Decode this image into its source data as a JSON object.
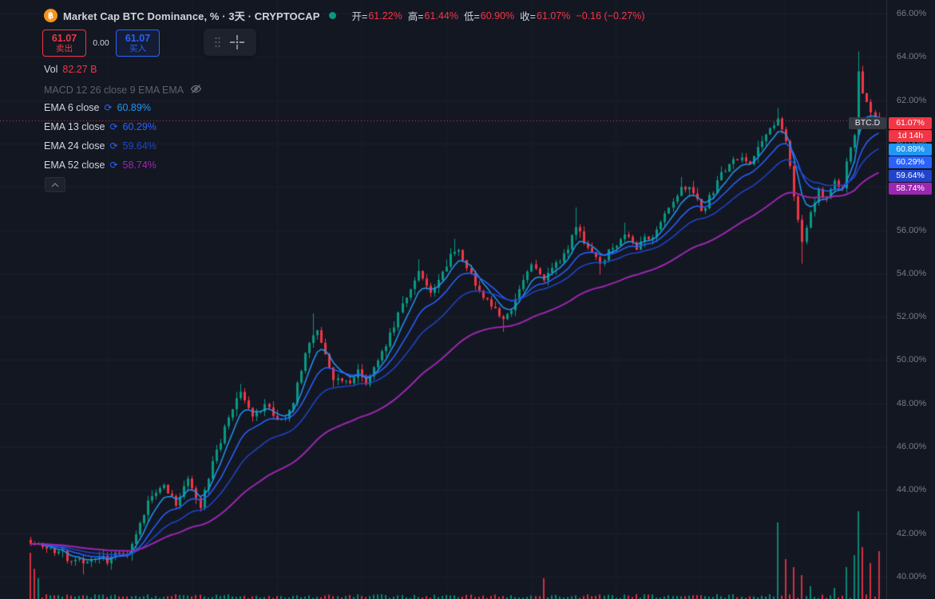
{
  "icons": {
    "bitcoin": "฿",
    "ema_source": "⟳"
  },
  "header": {
    "title": "Market Cap BTC Dominance, % · 3天 · CRYPTOCAP",
    "ohlc": {
      "open_label": "开=",
      "open": "61.22%",
      "high_label": "高=",
      "high": "61.44%",
      "low_label": "低=",
      "low": "60.90%",
      "close_label": "收=",
      "close": "61.07%",
      "change": "−0.16 (−0.27%)"
    }
  },
  "trade": {
    "sell_price": "61.07",
    "sell_label": "卖出",
    "spread": "0.00",
    "buy_price": "61.07",
    "buy_label": "买入"
  },
  "price_axis": {
    "symbol_tag": "BTC.D",
    "symbol_tag_bg": "#363a45",
    "ticks": [
      {
        "value": 66,
        "label": "66.00%"
      },
      {
        "value": 64,
        "label": "64.00%"
      },
      {
        "value": 62,
        "label": "62.00%"
      },
      {
        "value": 60,
        "label": "60.00%"
      },
      {
        "value": 58,
        "label": "58.00%"
      },
      {
        "value": 56,
        "label": "56.00%"
      },
      {
        "value": 54,
        "label": "54.00%"
      },
      {
        "value": 52,
        "label": "52.00%"
      },
      {
        "value": 50,
        "label": "50.00%"
      },
      {
        "value": 48,
        "label": "48.00%"
      },
      {
        "value": 46,
        "label": "46.00%"
      },
      {
        "value": 44,
        "label": "44.00%"
      },
      {
        "value": 42,
        "label": "42.00%"
      },
      {
        "value": 40,
        "label": "40.00%"
      }
    ]
  },
  "chart_data": {
    "type": "candlestick",
    "title": "Market Cap BTC Dominance, % · 3天 · CRYPTOCAP",
    "symbol": "CRYPTOCAP:BTC.D",
    "timeframe": "3天",
    "ylabel": "BTC Dominance %",
    "ylim": [
      38.9,
      66.6
    ],
    "grid": true,
    "current_price": 61.07,
    "bar_countdown": "1d 14h",
    "last_bar": {
      "open": 61.22,
      "high": 61.44,
      "low": 60.9,
      "close": 61.07,
      "change": -0.16,
      "change_pct": -0.27
    },
    "volume": {
      "label": "Vol",
      "value": "82.27 B"
    },
    "macd": {
      "label": "MACD 12 26 close 9 EMA EMA",
      "hidden": true
    },
    "emas": [
      {
        "period": 6,
        "label": "EMA 6 close",
        "value_label": "60.89%",
        "last": 60.89,
        "color": "#2196f3"
      },
      {
        "period": 13,
        "label": "EMA 13 close",
        "value_label": "60.29%",
        "last": 60.29,
        "color": "#2962ff"
      },
      {
        "period": 24,
        "label": "EMA 24 close",
        "value_label": "59.64%",
        "last": 59.64,
        "color": "#2045cc"
      },
      {
        "period": 52,
        "label": "EMA 52 close",
        "value_label": "58.74%",
        "last": 58.74,
        "color": "#9c27b0"
      }
    ],
    "n_bars": 211,
    "trend_anchors": [
      [
        0,
        41.6
      ],
      [
        5,
        41.2
      ],
      [
        11,
        40.8
      ],
      [
        15,
        40.6
      ],
      [
        20,
        40.9
      ],
      [
        25,
        41.3
      ],
      [
        29,
        43.4
      ],
      [
        33,
        44.3
      ],
      [
        36,
        43.3
      ],
      [
        39,
        44.6
      ],
      [
        42,
        43.2
      ],
      [
        46,
        45.8
      ],
      [
        50,
        47.8
      ],
      [
        52,
        48.4
      ],
      [
        55,
        47.4
      ],
      [
        58,
        48.0
      ],
      [
        61,
        47.0
      ],
      [
        64,
        47.6
      ],
      [
        67,
        49.5
      ],
      [
        69,
        51.0
      ],
      [
        71,
        51.5
      ],
      [
        73,
        50.3
      ],
      [
        75,
        49.3
      ],
      [
        78,
        48.9
      ],
      [
        81,
        49.4
      ],
      [
        83,
        48.9
      ],
      [
        85,
        49.6
      ],
      [
        88,
        50.8
      ],
      [
        91,
        52.2
      ],
      [
        94,
        53.4
      ],
      [
        96,
        54.1
      ],
      [
        99,
        53.0
      ],
      [
        101,
        53.6
      ],
      [
        104,
        54.9
      ],
      [
        106,
        55.2
      ],
      [
        108,
        54.2
      ],
      [
        111,
        53.2
      ],
      [
        114,
        52.5
      ],
      [
        117,
        51.9
      ],
      [
        119,
        52.3
      ],
      [
        122,
        53.6
      ],
      [
        124,
        54.4
      ],
      [
        127,
        53.7
      ],
      [
        130,
        54.3
      ],
      [
        133,
        55.0
      ],
      [
        135,
        56.3
      ],
      [
        138,
        55.2
      ],
      [
        141,
        54.4
      ],
      [
        144,
        55.3
      ],
      [
        147,
        55.8
      ],
      [
        150,
        55.3
      ],
      [
        153,
        55.6
      ],
      [
        156,
        56.3
      ],
      [
        159,
        57.2
      ],
      [
        161,
        58.0
      ],
      [
        164,
        57.6
      ],
      [
        166,
        56.9
      ],
      [
        169,
        57.8
      ],
      [
        172,
        58.8
      ],
      [
        175,
        59.3
      ],
      [
        178,
        59.0
      ],
      [
        180,
        59.8
      ],
      [
        183,
        60.8
      ],
      [
        185,
        61.3
      ],
      [
        187,
        60.2
      ],
      [
        189,
        57.5
      ],
      [
        191,
        55.3
      ],
      [
        193,
        56.8
      ],
      [
        195,
        57.8
      ],
      [
        197,
        57.4
      ],
      [
        199,
        58.2
      ],
      [
        201,
        58.0
      ],
      [
        202,
        59.3
      ],
      [
        204,
        60.3
      ],
      [
        205,
        63.3
      ],
      [
        206,
        62.3
      ],
      [
        208,
        61.6
      ],
      [
        210,
        61.07
      ]
    ],
    "wick_spikes": [
      {
        "i": 13,
        "low": 40.1
      },
      {
        "i": 52,
        "high": 48.9
      },
      {
        "i": 70,
        "high": 52.15
      },
      {
        "i": 96,
        "high": 54.65
      },
      {
        "i": 105,
        "high": 55.6
      },
      {
        "i": 117,
        "low": 51.3
      },
      {
        "i": 135,
        "high": 57.05
      },
      {
        "i": 141,
        "low": 53.95
      },
      {
        "i": 147,
        "high": 56.35
      },
      {
        "i": 161,
        "high": 58.45
      },
      {
        "i": 185,
        "high": 61.65
      },
      {
        "i": 191,
        "low": 54.45
      },
      {
        "i": 205,
        "high": 64.25
      }
    ],
    "volume_spikes": [
      {
        "i": 0,
        "h": 58
      },
      {
        "i": 1,
        "h": 38
      },
      {
        "i": 2,
        "h": 26
      },
      {
        "i": 127,
        "h": 26
      },
      {
        "i": 185,
        "h": 96
      },
      {
        "i": 187,
        "h": 50
      },
      {
        "i": 189,
        "h": 40
      },
      {
        "i": 191,
        "h": 30
      },
      {
        "i": 193,
        "h": 16
      },
      {
        "i": 199,
        "h": 14
      },
      {
        "i": 202,
        "h": 40
      },
      {
        "i": 204,
        "h": 55
      },
      {
        "i": 205,
        "h": 110
      },
      {
        "i": 206,
        "h": 65
      },
      {
        "i": 208,
        "h": 45
      },
      {
        "i": 210,
        "h": 60
      }
    ],
    "colors": {
      "up": "#089981",
      "down": "#f23645",
      "bg": "#131722",
      "grid": "#1c2030",
      "grid_v": "#181c27",
      "axis_text": "#787b86",
      "current_line": "#f23645"
    }
  }
}
